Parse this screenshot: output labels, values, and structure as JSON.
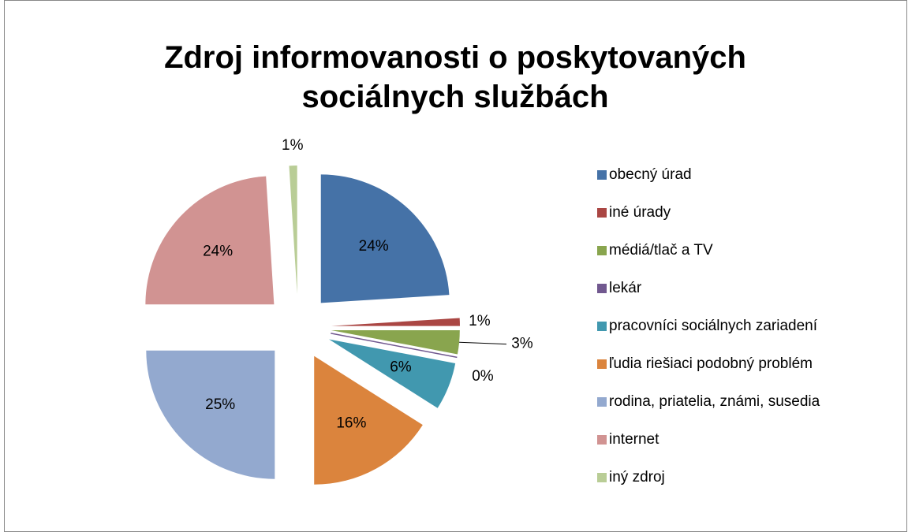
{
  "chart_data": {
    "type": "pie",
    "title": "Zdroj informovanosti o poskytovaných sociálnych službách",
    "categories": [
      "obecný úrad",
      "iné úrady",
      "médiá/tlač a TV",
      "lekár",
      "pracovníci sociálnych zariadení",
      "ľudia riešiaci podobný problém",
      "rodina, priatelia, známi, susedia",
      "internet",
      "iný zdroj"
    ],
    "values": [
      24,
      1,
      3,
      0,
      6,
      16,
      25,
      24,
      1
    ],
    "value_labels": [
      "24%",
      "1%",
      "3%",
      "0%",
      "6%",
      "16%",
      "25%",
      "24%",
      "1%"
    ],
    "colors": [
      "#4572a7",
      "#aa4643",
      "#89a54e",
      "#71588f",
      "#4198af",
      "#db843d",
      "#93a9cf",
      "#d19392",
      "#b9cd96"
    ],
    "legend": "right"
  }
}
